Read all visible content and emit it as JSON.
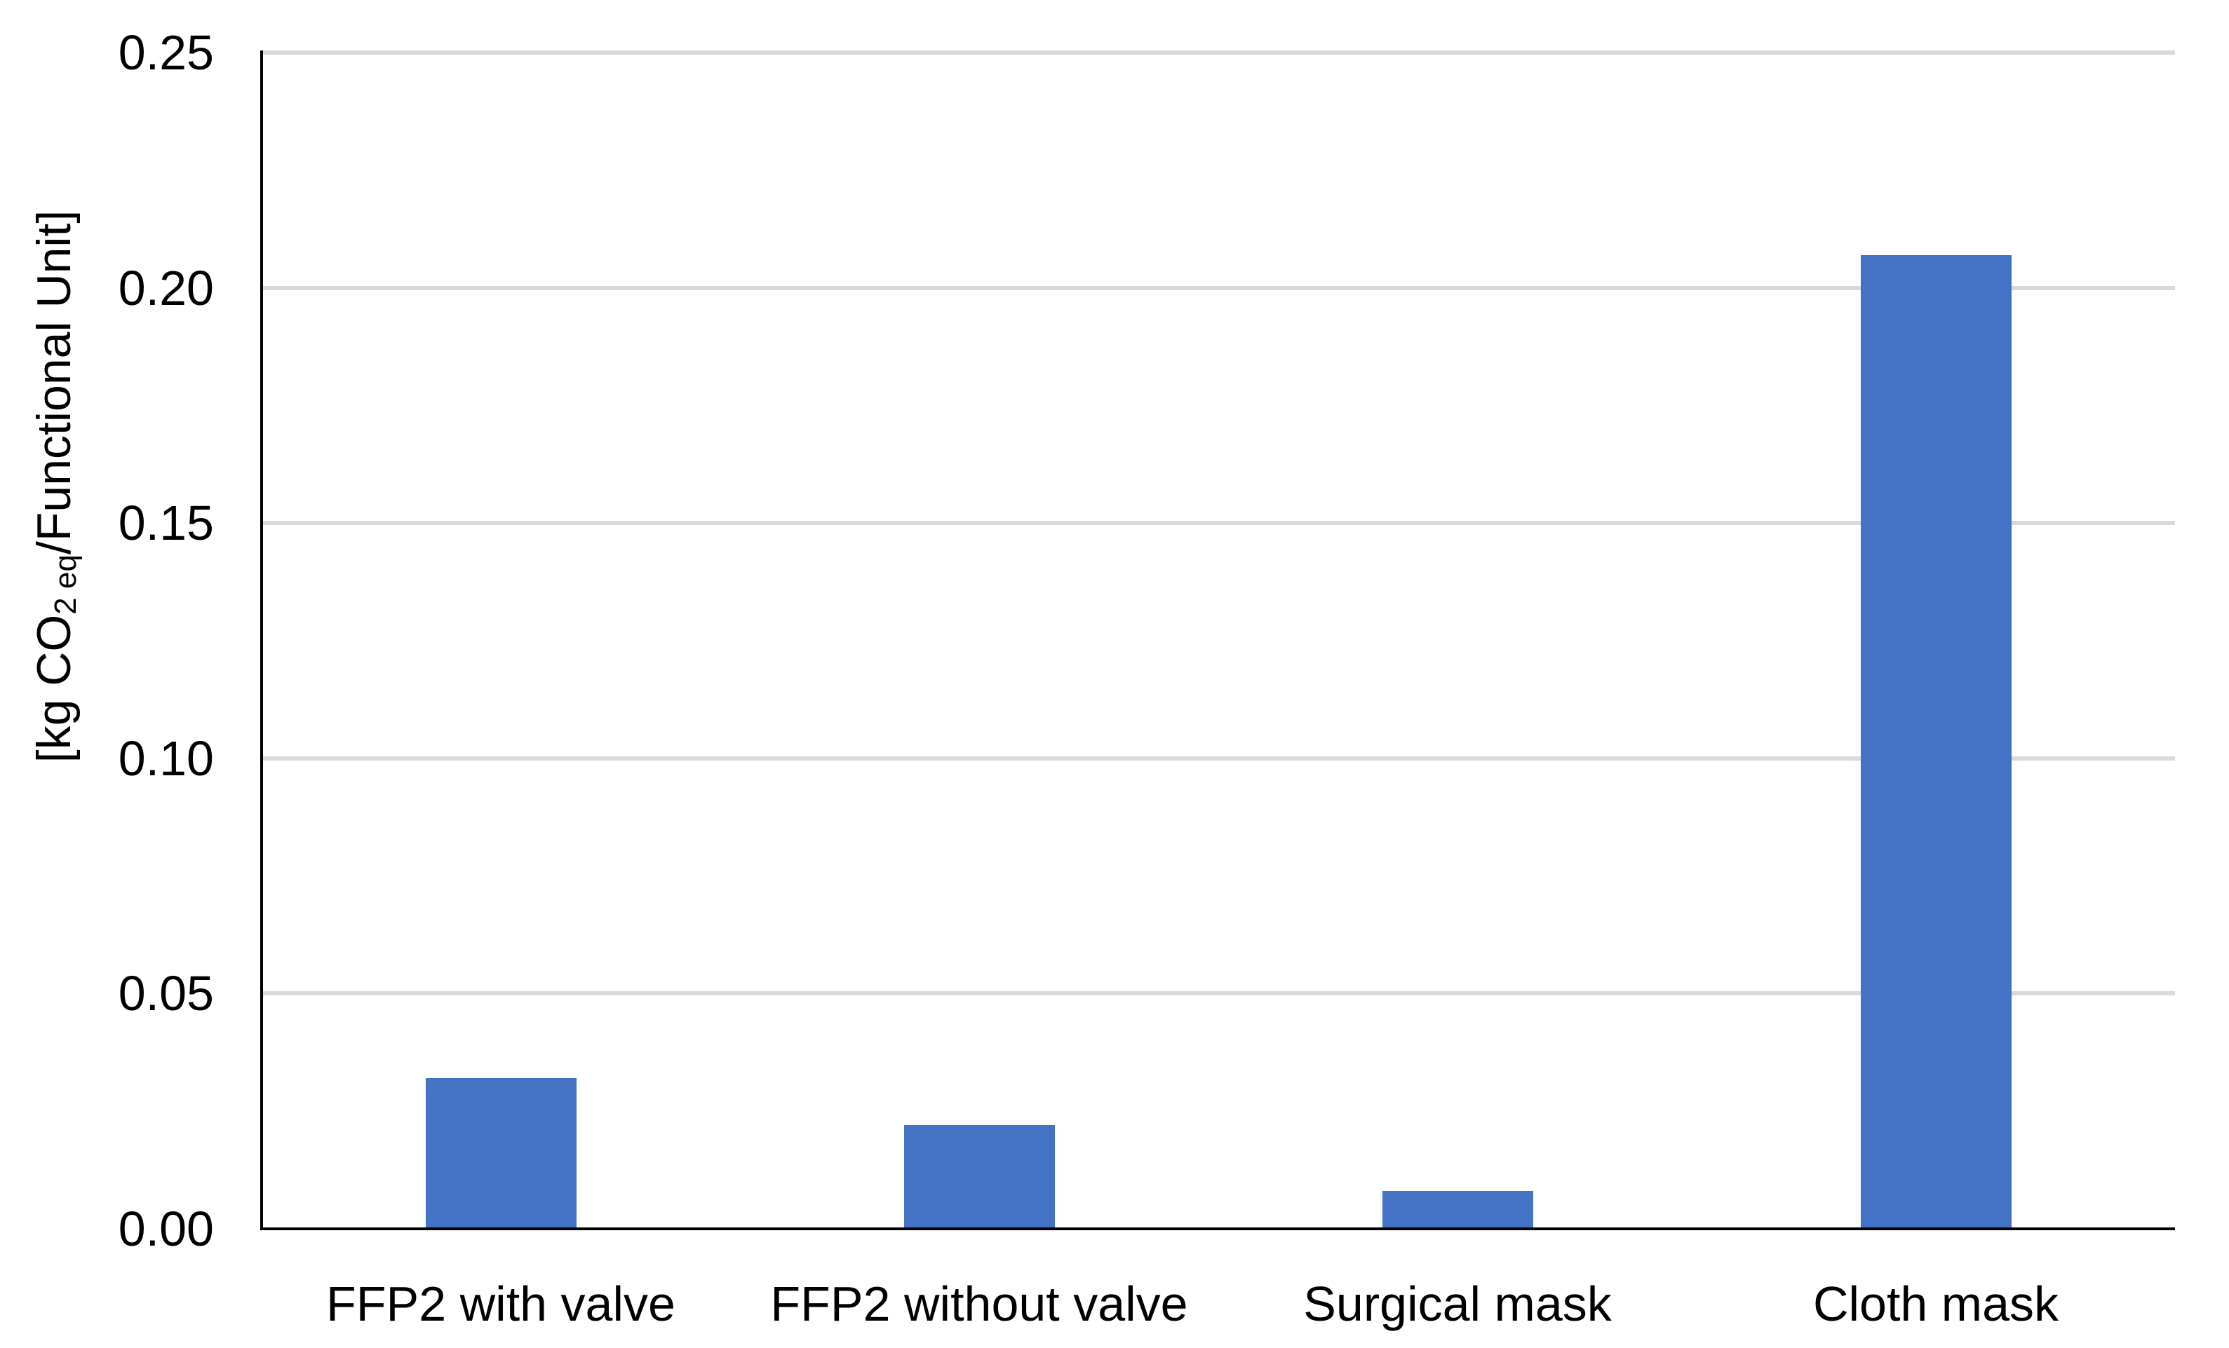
{
  "chart_data": {
    "type": "bar",
    "title": "",
    "categories": [
      "FFP2 with valve",
      "FFP2 without valve",
      "Surgical mask",
      "Cloth mask"
    ],
    "values": [
      0.032,
      0.022,
      0.008,
      0.207
    ],
    "ylabel": "[kg CO2 eq/Functional Unit]",
    "ylabel_parts": {
      "prefix": "[kg CO",
      "subscript": "2 eq",
      "suffix": "/Functional Unit]"
    },
    "xlabel": "",
    "ytick_labels": [
      "0.00",
      "0.05",
      "0.10",
      "0.15",
      "0.20",
      "0.25"
    ],
    "ytick_values": [
      0,
      0.05,
      0.1,
      0.15,
      0.2,
      0.25
    ],
    "ylim": [
      0,
      0.25
    ],
    "grid": true,
    "legend": false,
    "bar_color": "#4472C4",
    "gridline_color": "#D9D9D9",
    "axis_color": "#000000",
    "background_color": "#FFFFFF"
  }
}
